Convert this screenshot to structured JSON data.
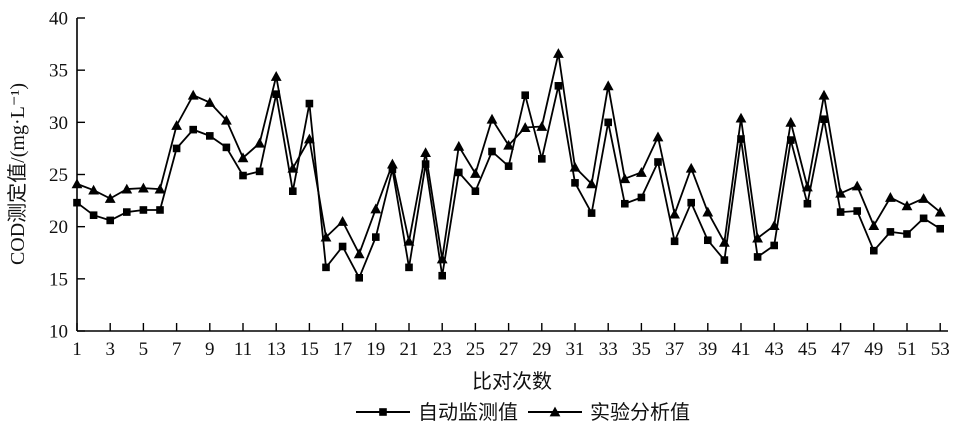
{
  "chart_data": {
    "type": "line",
    "title": "",
    "xlabel": "比对次数",
    "ylabel": "COD测定值/(mg·L⁻¹)",
    "xlim": [
      1,
      53
    ],
    "ylim": [
      10,
      40
    ],
    "grid": false,
    "legend_position": "bottom-center",
    "line_color": "#000000",
    "x_ticks": [
      1,
      3,
      5,
      7,
      9,
      11,
      13,
      15,
      17,
      19,
      21,
      23,
      25,
      27,
      29,
      31,
      33,
      35,
      37,
      39,
      41,
      43,
      45,
      47,
      49,
      51,
      53
    ],
    "y_ticks": [
      10,
      15,
      20,
      25,
      30,
      35,
      40
    ],
    "x": [
      1,
      2,
      3,
      4,
      5,
      6,
      7,
      8,
      9,
      10,
      11,
      12,
      13,
      14,
      15,
      16,
      17,
      18,
      19,
      20,
      21,
      22,
      23,
      24,
      25,
      26,
      27,
      28,
      29,
      30,
      31,
      32,
      33,
      34,
      35,
      36,
      37,
      38,
      39,
      40,
      41,
      42,
      43,
      44,
      45,
      46,
      47,
      48,
      49,
      50,
      51,
      52,
      53
    ],
    "series": [
      {
        "name": "自动监测值",
        "marker": "square",
        "color": "#000000",
        "values": [
          22.3,
          21.1,
          20.6,
          21.4,
          21.6,
          21.6,
          27.5,
          29.3,
          28.7,
          27.6,
          24.9,
          25.3,
          32.7,
          23.4,
          31.8,
          16.1,
          18.1,
          15.1,
          19.0,
          25.5,
          16.1,
          26.0,
          15.3,
          25.2,
          23.4,
          27.2,
          25.8,
          32.6,
          26.5,
          33.5,
          24.2,
          21.3,
          30.0,
          22.2,
          22.8,
          26.2,
          18.6,
          22.3,
          18.7,
          16.8,
          28.4,
          17.1,
          18.2,
          28.3,
          22.2,
          30.3,
          21.4,
          21.5,
          17.7,
          19.5,
          19.3,
          20.8,
          19.8
        ]
      },
      {
        "name": "实验分析值",
        "marker": "triangle",
        "color": "#000000",
        "values": [
          24.1,
          23.5,
          22.7,
          23.6,
          23.7,
          23.6,
          29.7,
          32.6,
          31.9,
          30.2,
          26.6,
          28.0,
          34.4,
          25.6,
          28.4,
          19.0,
          20.5,
          17.4,
          21.7,
          26.0,
          18.6,
          27.1,
          16.9,
          27.7,
          25.1,
          30.3,
          27.8,
          29.5,
          29.6,
          36.6,
          25.7,
          24.1,
          33.5,
          24.6,
          25.2,
          28.6,
          21.2,
          25.6,
          21.4,
          18.5,
          30.4,
          18.9,
          20.1,
          30.0,
          23.8,
          32.6,
          23.2,
          23.9,
          20.1,
          22.8,
          22.0,
          22.7,
          21.4
        ]
      }
    ]
  }
}
